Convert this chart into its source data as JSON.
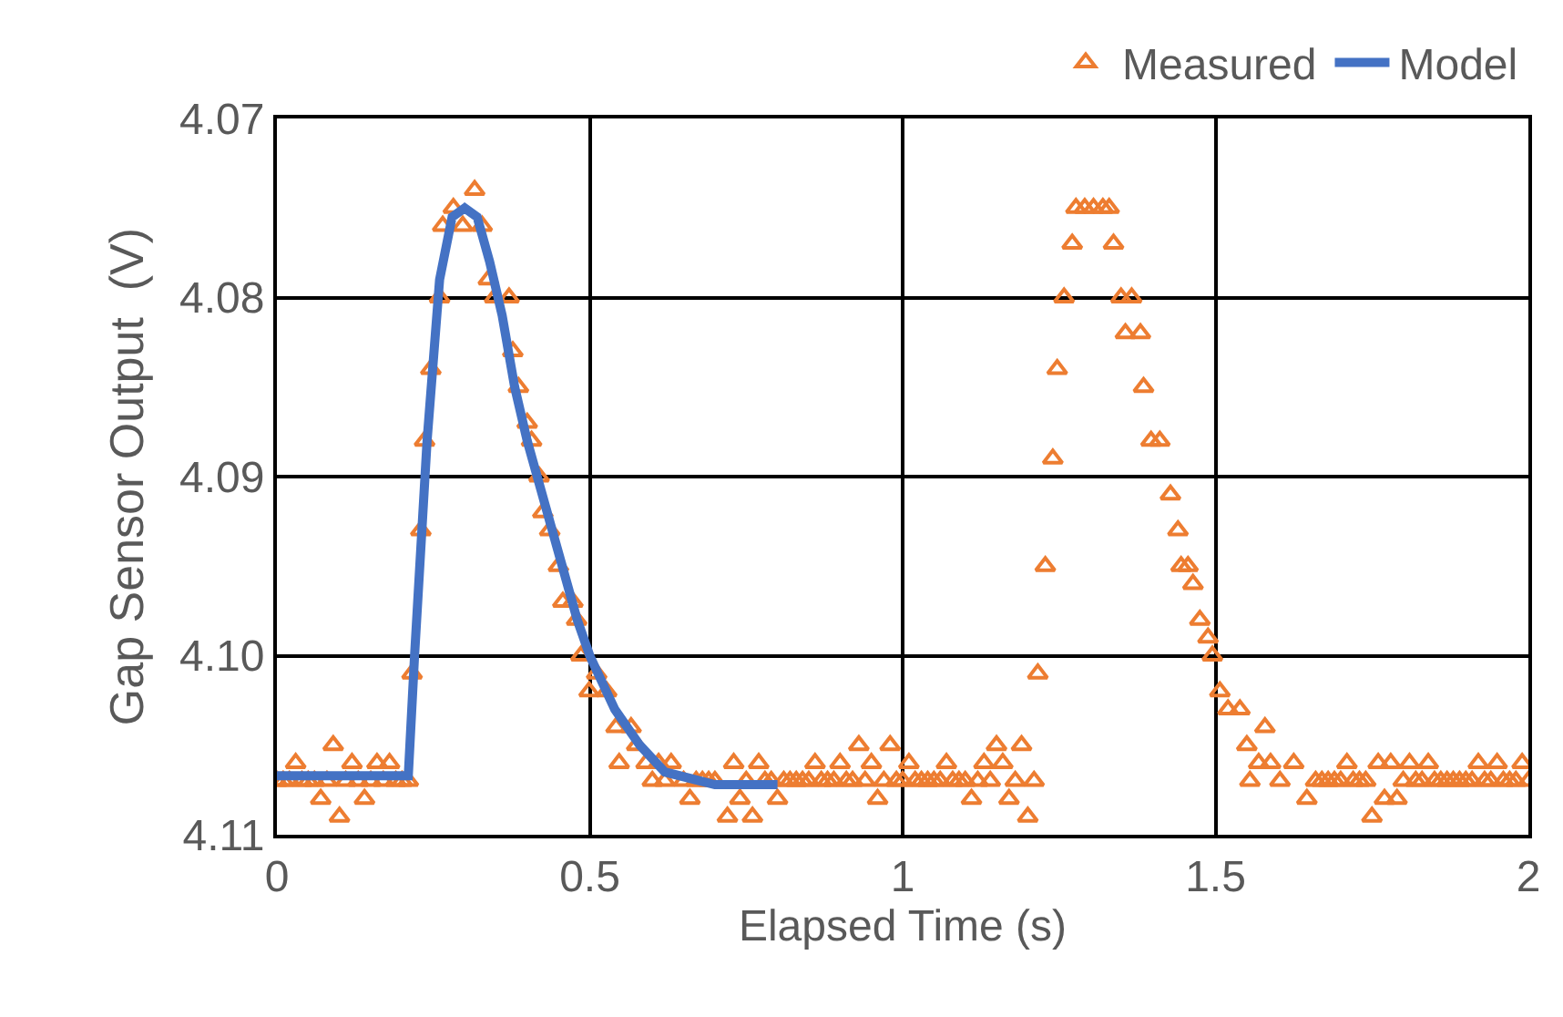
{
  "chart_data": {
    "type": "scatter",
    "xlabel": "Elapsed Time (s)",
    "ylabel": "Gap Sensor Output  (V)",
    "xlim": [
      0,
      2
    ],
    "xticks": [
      0,
      0.5,
      1,
      1.5,
      2
    ],
    "ylim": [
      4.11,
      4.07
    ],
    "yticks": [
      {
        "value": 4.07,
        "label": "4.07"
      },
      {
        "value": 4.08,
        "label": "4.08"
      },
      {
        "value": 4.09,
        "label": "4.09"
      },
      {
        "value": 4.1,
        "label": "4.10"
      },
      {
        "value": 4.11,
        "label": "4.11"
      }
    ],
    "grid": true,
    "legend": "top right",
    "series": [
      {
        "name": "Measured",
        "marker": "triangle",
        "color": "#ed7d31",
        "x": [
          0,
          0.01,
          0.02,
          0.03,
          0.04,
          0.05,
          0.06,
          0.07,
          0.08,
          0.09,
          0.1,
          0.11,
          0.12,
          0.13,
          0.14,
          0.15,
          0.16,
          0.17,
          0.18,
          0.19,
          0.2,
          0.21,
          0.216,
          0.23,
          0.236,
          0.246,
          0.26,
          0.265,
          0.282,
          0.297,
          0.316,
          0.328,
          0.338,
          0.348,
          0.371,
          0.377,
          0.386,
          0.4,
          0.407,
          0.419,
          0.425,
          0.436,
          0.45,
          0.457,
          0.473,
          0.479,
          0.486,
          0.499,
          0.511,
          0.527,
          0.542,
          0.547,
          0.566,
          0.575,
          0.59,
          0.6,
          0.61,
          0.62,
          0.63,
          0.65,
          0.66,
          0.67,
          0.68,
          0.69,
          0.7,
          0.72,
          0.73,
          0.74,
          0.75,
          0.76,
          0.77,
          0.78,
          0.79,
          0.8,
          0.81,
          0.82,
          0.83,
          0.84,
          0.85,
          0.86,
          0.87,
          0.88,
          0.89,
          0.9,
          0.91,
          0.92,
          0.93,
          0.94,
          0.95,
          0.96,
          0.97,
          0.98,
          0.99,
          1.0,
          1.01,
          1.02,
          1.03,
          1.04,
          1.05,
          1.06,
          1.07,
          1.08,
          1.09,
          1.1,
          1.11,
          1.12,
          1.13,
          1.14,
          1.15,
          1.16,
          1.17,
          1.18,
          1.19,
          1.2,
          1.21,
          1.216,
          1.228,
          1.24,
          1.247,
          1.258,
          1.271,
          1.277,
          1.291,
          1.305,
          1.32,
          1.33,
          1.337,
          1.349,
          1.356,
          1.366,
          1.38,
          1.385,
          1.397,
          1.411,
          1.428,
          1.44,
          1.445,
          1.456,
          1.464,
          1.475,
          1.488,
          1.495,
          1.507,
          1.52,
          1.539,
          1.55,
          1.555,
          1.569,
          1.579,
          1.588,
          1.603,
          1.625,
          1.646,
          1.66,
          1.67,
          1.68,
          1.69,
          1.7,
          1.71,
          1.72,
          1.73,
          1.74,
          1.75,
          1.76,
          1.77,
          1.78,
          1.79,
          1.8,
          1.81,
          1.82,
          1.83,
          1.84,
          1.85,
          1.86,
          1.87,
          1.88,
          1.89,
          1.9,
          1.91,
          1.92,
          1.93,
          1.94,
          1.95,
          1.96,
          1.97,
          1.98,
          1.99,
          2.0
        ],
        "values": [
          4.107,
          4.107,
          4.107,
          4.106,
          4.107,
          4.107,
          4.107,
          4.108,
          4.107,
          4.105,
          4.109,
          4.107,
          4.106,
          4.107,
          4.108,
          4.107,
          4.106,
          4.107,
          4.106,
          4.107,
          4.107,
          4.107,
          4.101,
          4.093,
          4.088,
          4.084,
          4.08,
          4.076,
          4.075,
          4.076,
          4.074,
          4.076,
          4.079,
          4.08,
          4.08,
          4.083,
          4.085,
          4.087,
          4.088,
          4.09,
          4.092,
          4.093,
          4.095,
          4.097,
          4.097,
          4.098,
          4.1,
          4.102,
          4.101,
          4.102,
          4.104,
          4.106,
          4.104,
          4.105,
          4.106,
          4.107,
          4.106,
          4.107,
          4.106,
          4.107,
          4.108,
          4.107,
          4.107,
          4.107,
          4.107,
          4.109,
          4.106,
          4.108,
          4.107,
          4.109,
          4.106,
          4.107,
          4.107,
          4.108,
          4.107,
          4.107,
          4.107,
          4.107,
          4.107,
          4.106,
          4.107,
          4.107,
          4.107,
          4.106,
          4.107,
          4.107,
          4.105,
          4.107,
          4.106,
          4.108,
          4.107,
          4.105,
          4.107,
          4.107,
          4.106,
          4.107,
          4.107,
          4.107,
          4.107,
          4.107,
          4.106,
          4.107,
          4.107,
          4.107,
          4.108,
          4.107,
          4.106,
          4.107,
          4.105,
          4.106,
          4.108,
          4.107,
          4.105,
          4.109,
          4.107,
          4.101,
          4.095,
          4.089,
          4.084,
          4.08,
          4.077,
          4.075,
          4.075,
          4.075,
          4.075,
          4.075,
          4.077,
          4.08,
          4.082,
          4.08,
          4.082,
          4.085,
          4.088,
          4.088,
          4.091,
          4.093,
          4.095,
          4.095,
          4.096,
          4.098,
          4.099,
          4.1,
          4.102,
          4.103,
          4.103,
          4.105,
          4.107,
          4.106,
          4.104,
          4.106,
          4.107,
          4.106,
          4.108,
          4.107,
          4.107,
          4.107,
          4.107,
          4.107,
          4.106,
          4.107,
          4.107,
          4.107,
          4.109,
          4.106,
          4.108,
          4.106,
          4.108,
          4.107,
          4.106,
          4.107,
          4.107,
          4.106,
          4.107,
          4.107,
          4.107,
          4.107,
          4.107,
          4.107,
          4.107,
          4.106,
          4.107,
          4.107,
          4.106,
          4.107,
          4.107,
          4.107,
          4.106,
          4.107
        ]
      },
      {
        "name": "Model",
        "type": "line",
        "marker": "none",
        "line_style": "solid",
        "color": "#4472c4",
        "x": [
          0,
          0.21,
          0.22,
          0.24,
          0.26,
          0.28,
          0.3,
          0.32,
          0.34,
          0.36,
          0.38,
          0.4,
          0.44,
          0.48,
          0.5,
          0.54,
          0.58,
          0.62,
          0.7,
          0.8
        ],
        "values": [
          4.1067,
          4.1067,
          4.1,
          4.088,
          4.079,
          4.0755,
          4.075,
          4.0755,
          4.078,
          4.081,
          4.085,
          4.088,
          4.093,
          4.098,
          4.1,
          4.103,
          4.105,
          4.1065,
          4.1072,
          4.1072
        ]
      }
    ]
  }
}
